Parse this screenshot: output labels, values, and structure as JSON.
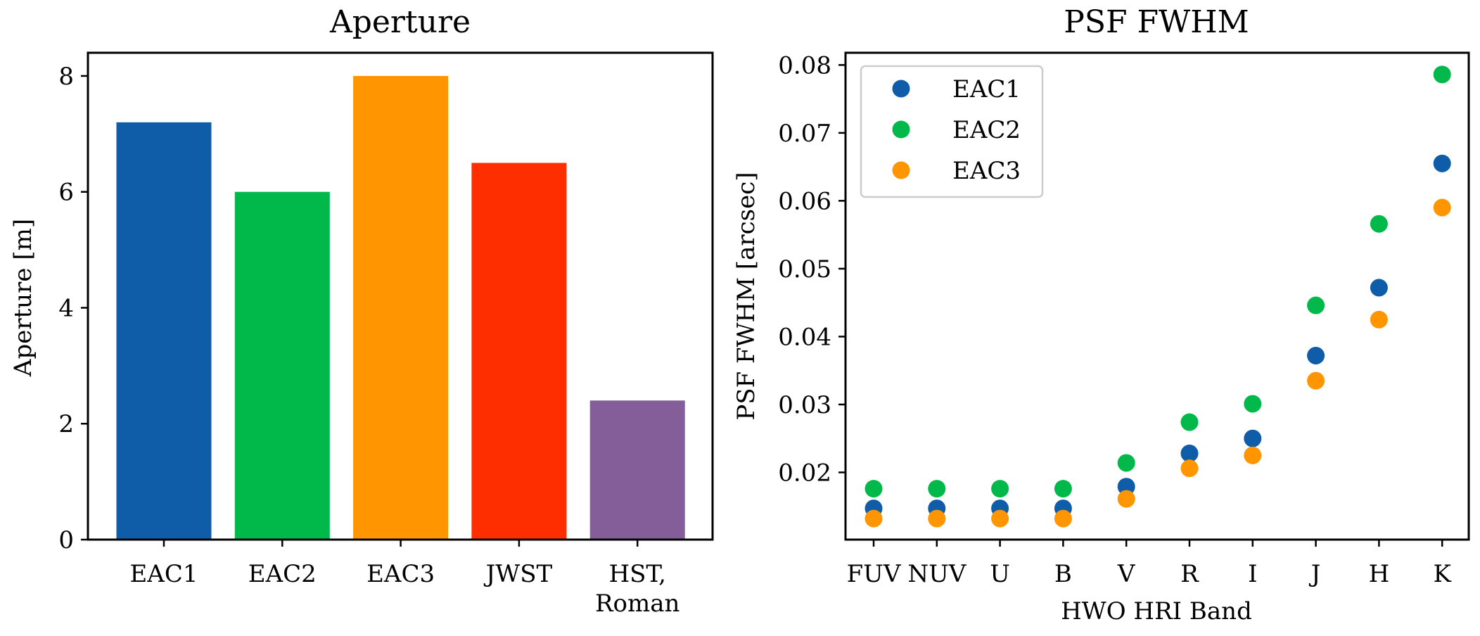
{
  "chart_data": [
    {
      "type": "bar",
      "title": "Aperture",
      "xlabel": "",
      "ylabel": "Aperture [m]",
      "categories": [
        "EAC1",
        "EAC2",
        "EAC3",
        "JWST",
        "HST,\nRoman"
      ],
      "values": [
        7.2,
        6.0,
        8.0,
        6.5,
        2.4
      ],
      "colors": [
        "#0f5ca8",
        "#00b94a",
        "#ff9500",
        "#ff2e00",
        "#835e98"
      ],
      "ylim": [
        0,
        8.4
      ],
      "yticks": [
        0,
        2,
        4,
        6,
        8
      ],
      "grid": false
    },
    {
      "type": "scatter",
      "title": "PSF FWHM",
      "xlabel": "HWO HRI Band",
      "ylabel": "PSF FWHM [arcsec]",
      "categories": [
        "FUV",
        "NUV",
        "U",
        "B",
        "V",
        "R",
        "I",
        "J",
        "H",
        "K"
      ],
      "series": [
        {
          "name": "EAC1",
          "color": "#0f5ca8",
          "values": [
            0.0147,
            0.0147,
            0.0147,
            0.0147,
            0.0179,
            0.0228,
            0.025,
            0.0372,
            0.0472,
            0.0655
          ]
        },
        {
          "name": "EAC2",
          "color": "#00b94a",
          "values": [
            0.0176,
            0.0176,
            0.0176,
            0.0176,
            0.0214,
            0.0274,
            0.0301,
            0.0446,
            0.0566,
            0.0786
          ]
        },
        {
          "name": "EAC3",
          "color": "#ff9500",
          "values": [
            0.0132,
            0.0132,
            0.0132,
            0.0132,
            0.0161,
            0.0206,
            0.0225,
            0.0335,
            0.0425,
            0.059
          ]
        }
      ],
      "ylim": [
        0.0101,
        0.0818
      ],
      "yticks": [
        0.02,
        0.03,
        0.04,
        0.05,
        0.06,
        0.07,
        0.08
      ],
      "ytick_labels": [
        "0.02",
        "0.03",
        "0.04",
        "0.05",
        "0.06",
        "0.07",
        "0.08"
      ],
      "legend": "top-left",
      "grid": false
    }
  ]
}
